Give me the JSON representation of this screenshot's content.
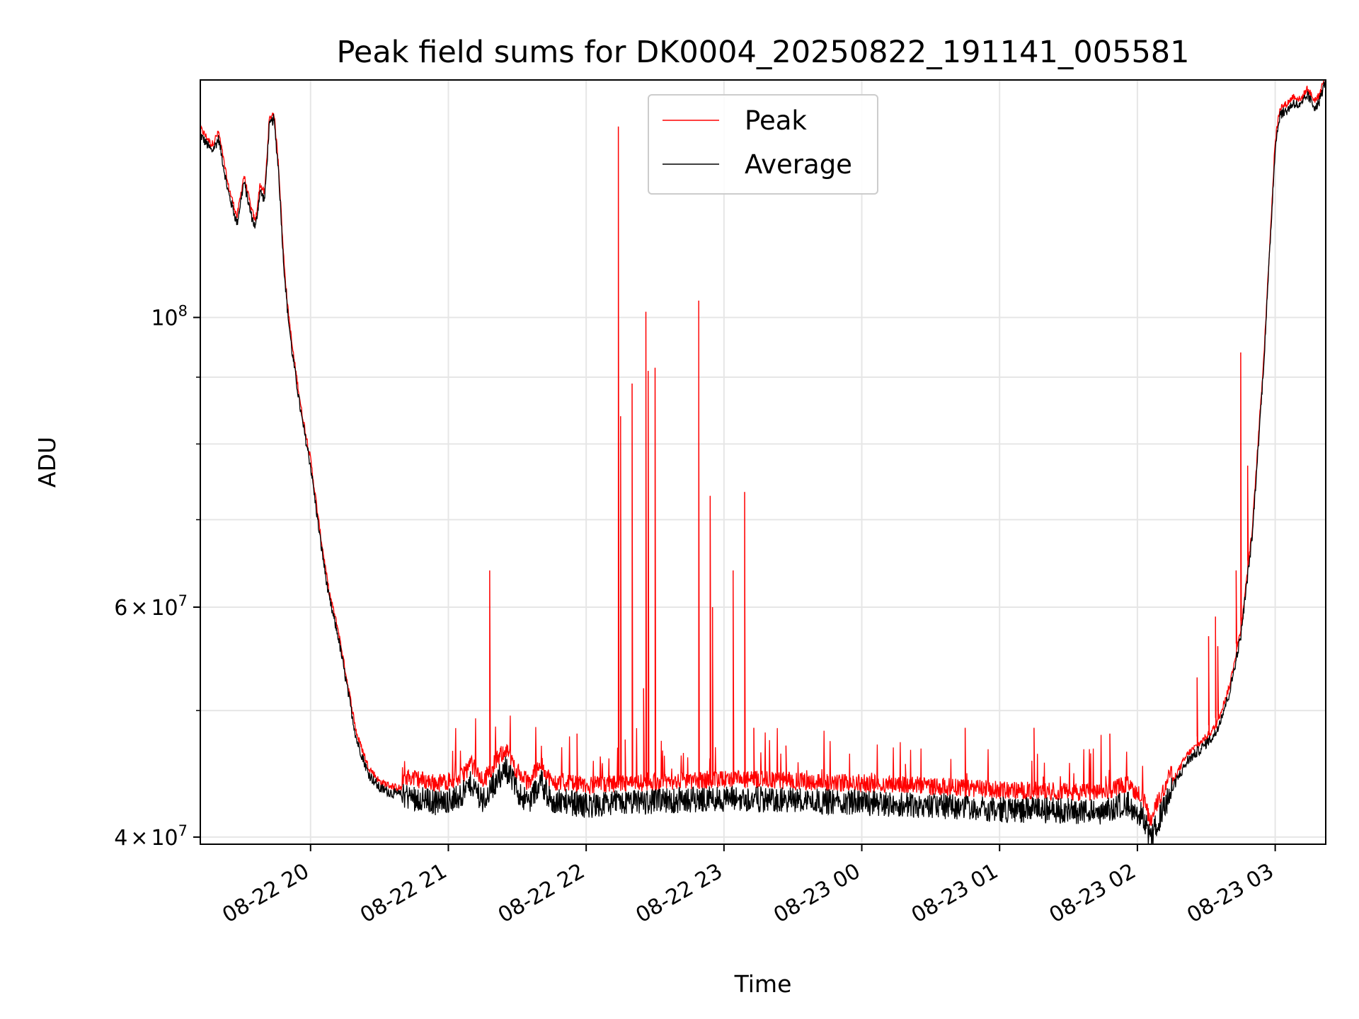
{
  "chart_data": {
    "type": "line",
    "title": "Peak field sums for DK0004_20250822_191141_005581",
    "xlabel": "Time",
    "ylabel": "ADU",
    "yscale": "log",
    "xlim": [
      "2025-08-22 19:12",
      "2025-08-23 03:22"
    ],
    "ylim": [
      39500000,
      152000000
    ],
    "grid": true,
    "legend_position": "top-center",
    "x_ticks": [
      {
        "x": "2025-08-22 20:00",
        "label": "08-22 20"
      },
      {
        "x": "2025-08-22 21:00",
        "label": "08-22 21"
      },
      {
        "x": "2025-08-22 22:00",
        "label": "08-22 22"
      },
      {
        "x": "2025-08-22 23:00",
        "label": "08-22 23"
      },
      {
        "x": "2025-08-23 00:00",
        "label": "08-23 00"
      },
      {
        "x": "2025-08-23 01:00",
        "label": "08-23 01"
      },
      {
        "x": "2025-08-23 02:00",
        "label": "08-23 02"
      },
      {
        "x": "2025-08-23 03:00",
        "label": "08-23 03"
      }
    ],
    "y_major_ticks": [
      {
        "value": 40000000,
        "mantissa": "4",
        "exponent": "7",
        "times": true
      },
      {
        "value": 60000000,
        "mantissa": "6",
        "exponent": "7",
        "times": true
      },
      {
        "value": 100000000,
        "mantissa": "10",
        "exponent": "8",
        "times": false
      }
    ],
    "y_minor_ticks": [
      50000000,
      70000000,
      80000000,
      90000000
    ],
    "series": [
      {
        "name": "Average",
        "color": "#000000",
        "x": [
          "2025-08-22 19:12",
          "2025-08-22 19:17",
          "2025-08-22 19:20",
          "2025-08-22 19:24",
          "2025-08-22 19:28",
          "2025-08-22 19:31",
          "2025-08-22 19:34",
          "2025-08-22 19:36",
          "2025-08-22 19:38",
          "2025-08-22 19:40",
          "2025-08-22 19:42",
          "2025-08-22 19:44",
          "2025-08-22 19:46",
          "2025-08-22 19:47",
          "2025-08-22 19:48",
          "2025-08-22 19:49",
          "2025-08-22 19:50",
          "2025-08-22 19:52",
          "2025-08-22 19:56",
          "2025-08-22 20:00",
          "2025-08-22 20:04",
          "2025-08-22 20:08",
          "2025-08-22 20:12",
          "2025-08-22 20:16",
          "2025-08-22 20:20",
          "2025-08-22 20:25",
          "2025-08-22 20:30",
          "2025-08-22 20:36",
          "2025-08-22 20:45",
          "2025-08-22 20:55",
          "2025-08-22 21:05",
          "2025-08-22 21:10",
          "2025-08-22 21:15",
          "2025-08-22 21:20",
          "2025-08-22 21:25",
          "2025-08-22 21:30",
          "2025-08-22 21:35",
          "2025-08-22 21:40",
          "2025-08-22 21:45",
          "2025-08-22 21:50",
          "2025-08-22 22:00",
          "2025-08-22 22:20",
          "2025-08-22 22:40",
          "2025-08-22 23:00",
          "2025-08-22 23:30",
          "2025-08-23 00:00",
          "2025-08-23 00:30",
          "2025-08-23 01:00",
          "2025-08-23 01:30",
          "2025-08-23 01:45",
          "2025-08-23 01:55",
          "2025-08-23 02:02",
          "2025-08-23 02:06",
          "2025-08-23 02:08",
          "2025-08-23 02:10",
          "2025-08-23 02:13",
          "2025-08-23 02:17",
          "2025-08-23 02:22",
          "2025-08-23 02:28",
          "2025-08-23 02:34",
          "2025-08-23 02:40",
          "2025-08-23 02:45",
          "2025-08-23 02:50",
          "2025-08-23 02:55",
          "2025-08-23 03:00",
          "2025-08-23 03:02",
          "2025-08-23 03:05",
          "2025-08-23 03:08",
          "2025-08-23 03:11",
          "2025-08-23 03:14",
          "2025-08-23 03:17",
          "2025-08-23 03:19",
          "2025-08-23 03:22"
        ],
        "values": [
          138000000,
          134000000,
          137000000,
          125000000,
          118000000,
          127000000,
          120000000,
          117000000,
          125000000,
          123000000,
          140000000,
          142000000,
          130000000,
          121000000,
          112000000,
          106000000,
          101000000,
          94000000,
          84000000,
          77000000,
          68000000,
          61000000,
          57000000,
          52000000,
          47500000,
          44800000,
          43600000,
          43200000,
          42900000,
          42500000,
          42900000,
          44000000,
          42600000,
          44000000,
          45200000,
          43400000,
          42500000,
          44200000,
          42500000,
          42600000,
          42300000,
          42500000,
          42700000,
          42800000,
          42700000,
          42500000,
          42300000,
          42000000,
          41900000,
          41800000,
          42500000,
          41600000,
          39700000,
          40800000,
          41500000,
          42700000,
          44200000,
          45800000,
          46800000,
          48000000,
          51500000,
          57000000,
          68000000,
          92000000,
          135000000,
          143000000,
          144000000,
          146000000,
          145000000,
          148000000,
          145000000,
          146000000,
          152000000
        ]
      },
      {
        "name": "Peak",
        "color": "#ff0000",
        "spikes": [
          {
            "x": "2025-08-22 21:18",
            "value": 64000000
          },
          {
            "x": "2025-08-22 21:56",
            "value": 48000000
          },
          {
            "x": "2025-08-22 22:14",
            "value": 140000000
          },
          {
            "x": "2025-08-22 22:15",
            "value": 84000000
          },
          {
            "x": "2025-08-22 22:17",
            "value": 47500000
          },
          {
            "x": "2025-08-22 22:20",
            "value": 89000000
          },
          {
            "x": "2025-08-22 22:25",
            "value": 52000000
          },
          {
            "x": "2025-08-22 22:26",
            "value": 101000000
          },
          {
            "x": "2025-08-22 22:27",
            "value": 91000000
          },
          {
            "x": "2025-08-22 22:30",
            "value": 91500000
          },
          {
            "x": "2025-08-22 22:49",
            "value": 103000000
          },
          {
            "x": "2025-08-22 22:54",
            "value": 73000000
          },
          {
            "x": "2025-08-22 22:55",
            "value": 60000000
          },
          {
            "x": "2025-08-22 23:04",
            "value": 64000000
          },
          {
            "x": "2025-08-22 23:09",
            "value": 73500000
          },
          {
            "x": "2025-08-22 23:13",
            "value": 48500000
          },
          {
            "x": "2025-08-22 23:27",
            "value": 47000000
          },
          {
            "x": "2025-08-22 23:36",
            "value": 45000000
          },
          {
            "x": "2025-08-23 00:19",
            "value": 45500000
          },
          {
            "x": "2025-08-23 00:45",
            "value": 48500000
          },
          {
            "x": "2025-08-23 01:15",
            "value": 48500000
          },
          {
            "x": "2025-08-23 01:19",
            "value": 44500000
          },
          {
            "x": "2025-08-23 01:48",
            "value": 48000000
          },
          {
            "x": "2025-08-23 02:26",
            "value": 53000000
          },
          {
            "x": "2025-08-23 02:31",
            "value": 57000000
          },
          {
            "x": "2025-08-23 02:34",
            "value": 59000000
          },
          {
            "x": "2025-08-23 02:35",
            "value": 56000000
          },
          {
            "x": "2025-08-23 02:43",
            "value": 64000000
          },
          {
            "x": "2025-08-23 02:45",
            "value": 94000000
          },
          {
            "x": "2025-08-23 02:48",
            "value": 77000000
          }
        ]
      }
    ]
  }
}
